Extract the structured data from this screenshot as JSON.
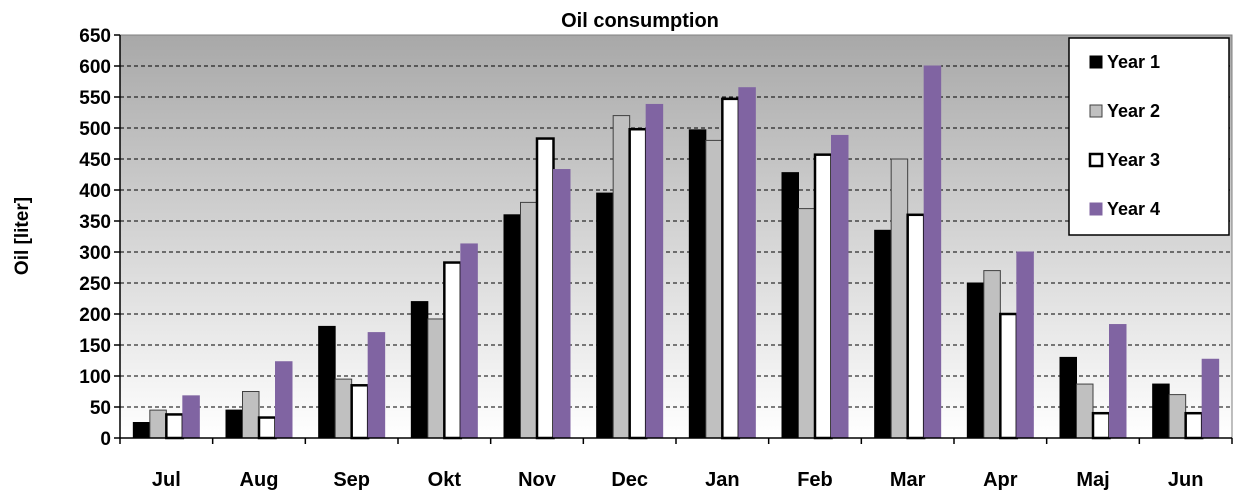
{
  "chart_data": {
    "type": "bar",
    "title": "Oil consumption",
    "xlabel": "",
    "ylabel": "Oil [liter]",
    "ylim": [
      0,
      650
    ],
    "yticks": [
      0,
      50,
      100,
      150,
      200,
      250,
      300,
      350,
      400,
      450,
      500,
      550,
      600,
      650
    ],
    "grid": "horizontal-dashed",
    "legend_position": "top-right",
    "categories": [
      "Jul",
      "Aug",
      "Sep",
      "Okt",
      "Nov",
      "Dec",
      "Jan",
      "Feb",
      "Mar",
      "Apr",
      "Maj",
      "Jun"
    ],
    "series": [
      {
        "name": "Year 1",
        "color": "#000000",
        "stroke": "#000000",
        "values": [
          25,
          45,
          180,
          220,
          360,
          395,
          497,
          428,
          335,
          250,
          130,
          87
        ]
      },
      {
        "name": "Year 2",
        "color": "#c0c0c0",
        "stroke": "#404040",
        "values": [
          45,
          75,
          95,
          192,
          380,
          520,
          480,
          370,
          450,
          270,
          87,
          70
        ]
      },
      {
        "name": "Year 3",
        "color": "#ffffff",
        "stroke": "#000000",
        "values": [
          38,
          33,
          85,
          283,
          483,
          498,
          547,
          457,
          360,
          200,
          40,
          40
        ]
      },
      {
        "name": "Year 4",
        "color": "#8064a2",
        "stroke": "#8064a2",
        "values": [
          68,
          123,
          170,
          313,
          433,
          538,
          565,
          488,
          600,
          300,
          183,
          127
        ]
      }
    ]
  }
}
